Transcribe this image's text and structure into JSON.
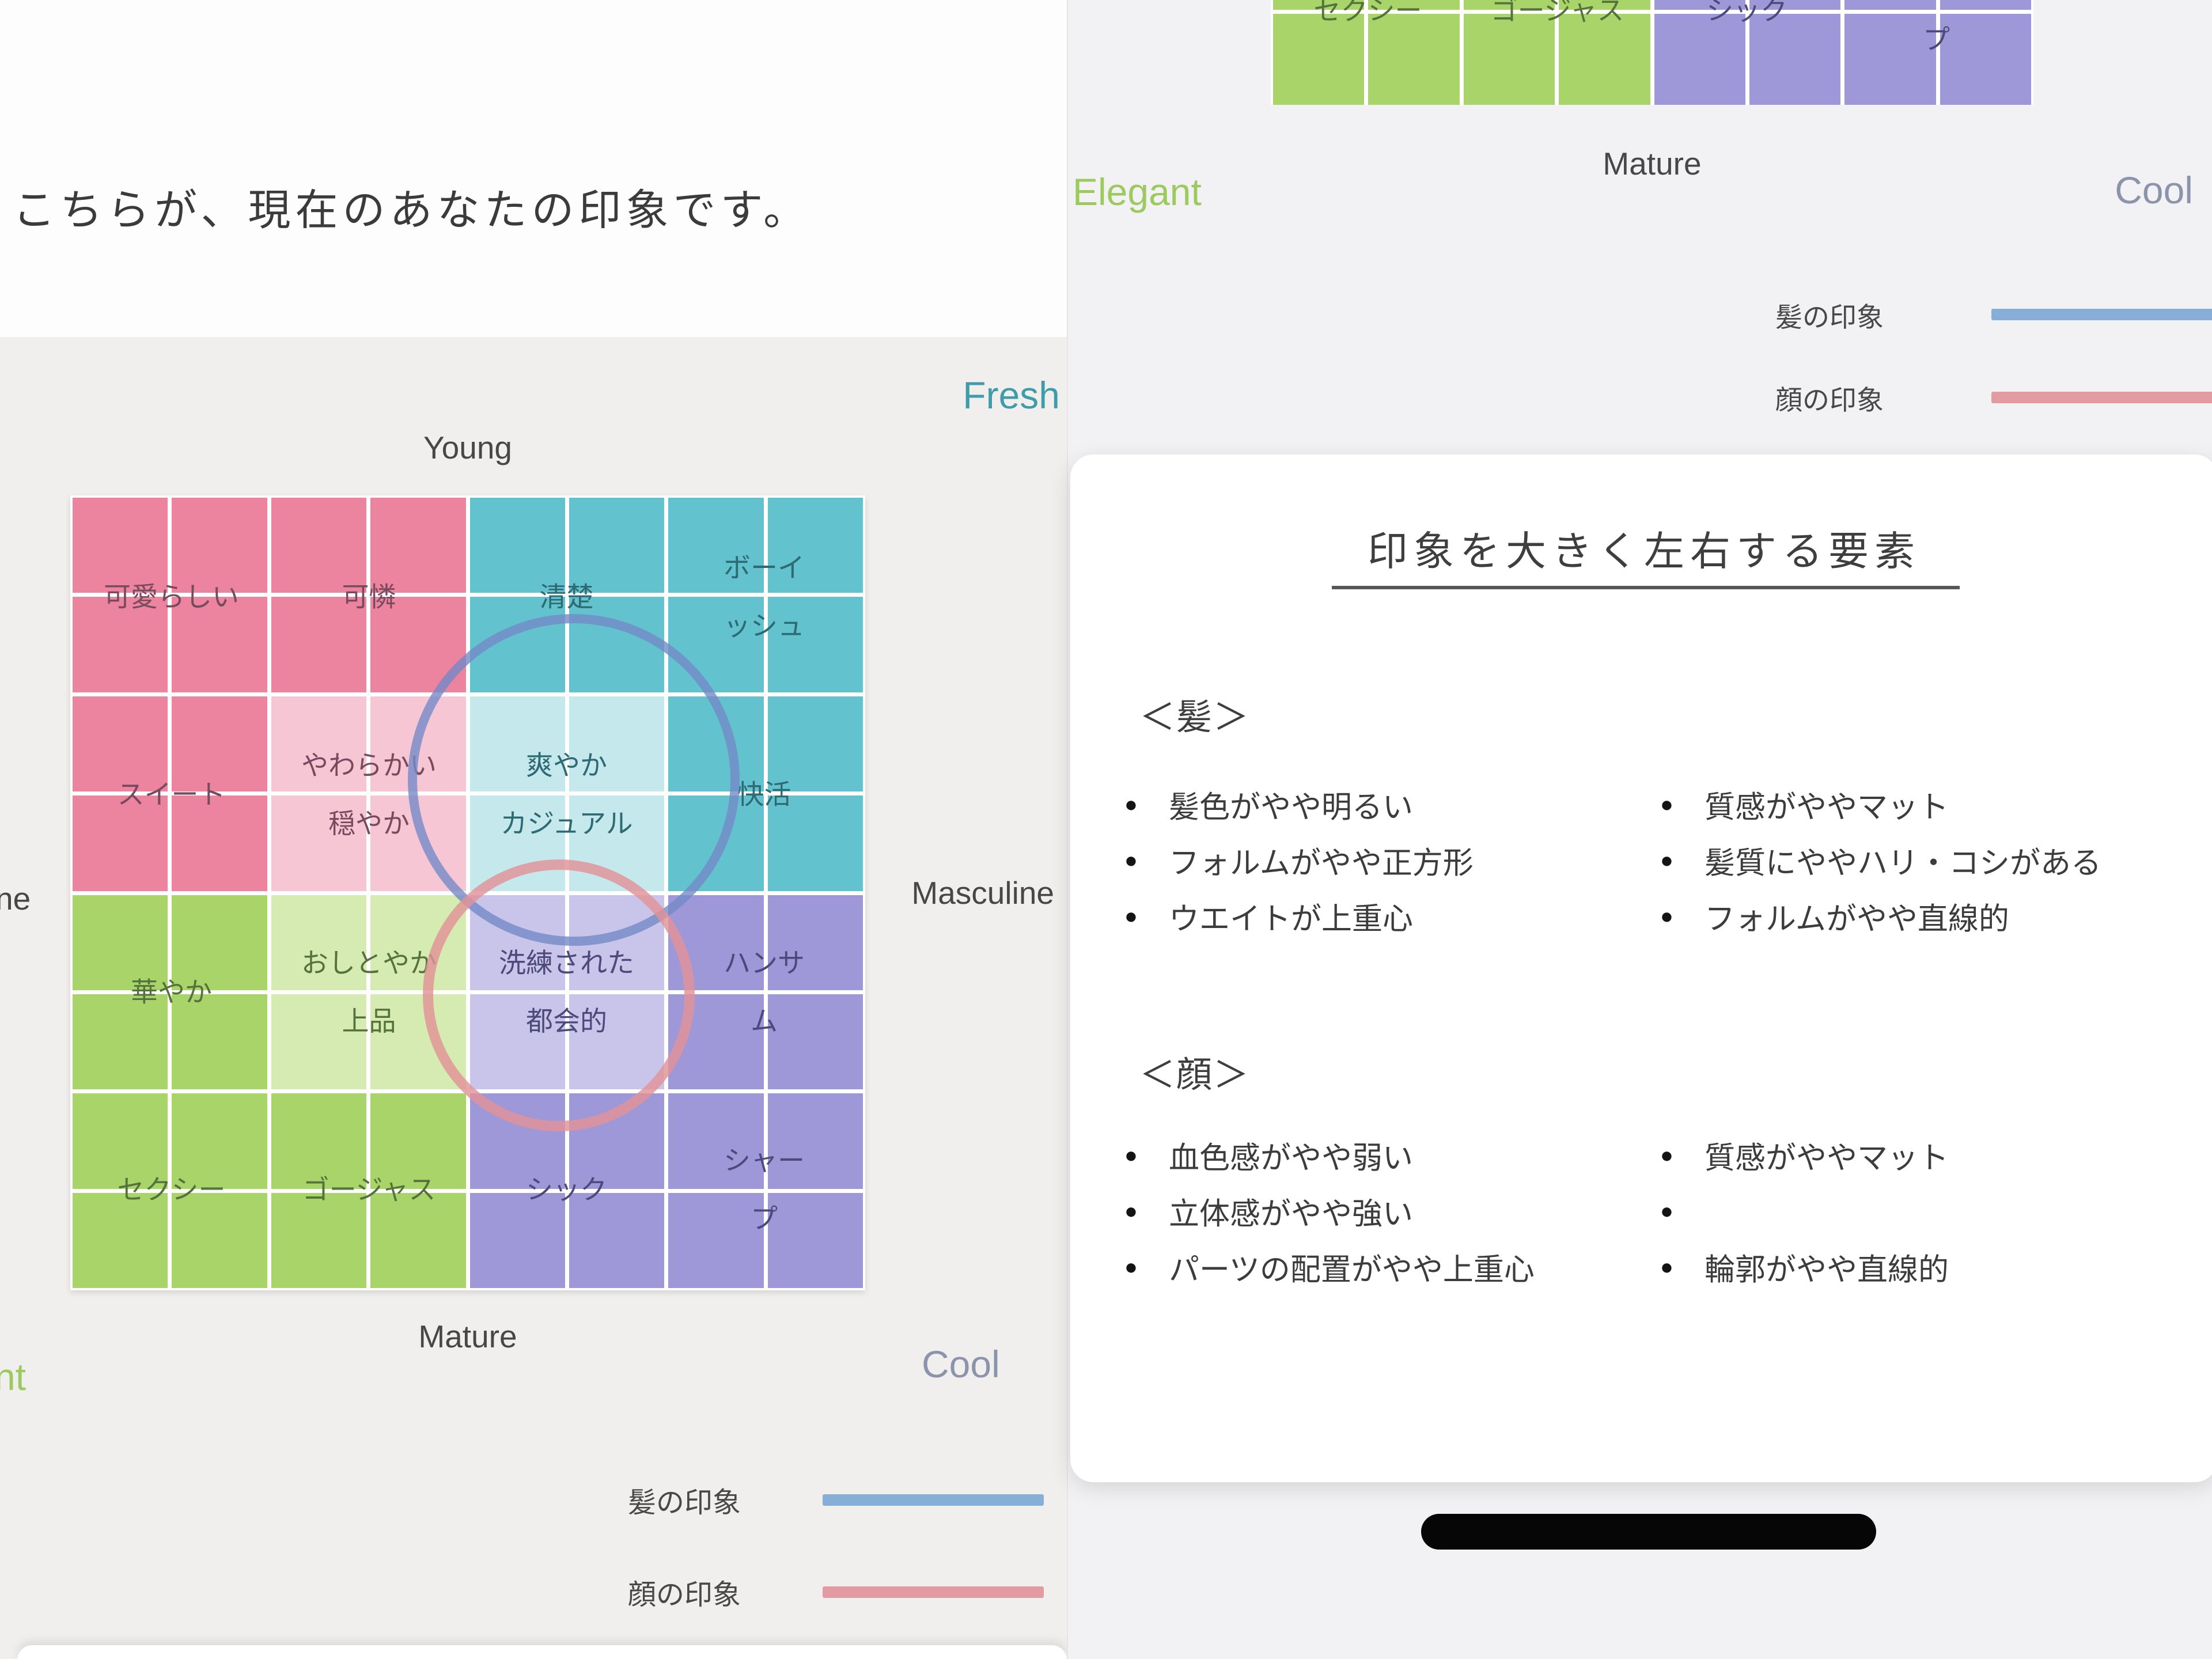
{
  "colors": {
    "quadrant": {
      "pink": "#ec84a0",
      "teal": "#62c3ce",
      "green": "#a9d469",
      "purple": "#9f98d8"
    },
    "quadrant_light": {
      "pink": "#f6c6d4",
      "teal": "#c5e8ec",
      "green": "#d6ebb2",
      "purple": "#c9c5ea"
    },
    "label_text": {
      "pink": "#774a5e",
      "teal": "#2e6a73",
      "green": "#55713c",
      "purple": "#4c4a7a"
    },
    "hair_line": "#87aed6",
    "face_line": "#e29ba1",
    "hair_circle": "#7489c7",
    "face_circle": "#e29297",
    "fresh": "#3f9da9",
    "cool": "#8b94aa",
    "elegant": "#9dca5f"
  },
  "matrix_blocks": [
    {
      "label": "可愛らしい",
      "quadrant": "pink",
      "light": false
    },
    {
      "label": "可憐",
      "quadrant": "pink",
      "light": false
    },
    {
      "label": "清楚",
      "quadrant": "teal",
      "light": false
    },
    {
      "label": "ボーイッシュ",
      "quadrant": "teal",
      "light": false
    },
    {
      "label": "スイート",
      "quadrant": "pink",
      "light": false
    },
    {
      "label": "やわらかい\n穏やか",
      "quadrant": "pink",
      "light": true
    },
    {
      "label": "爽やか\nカジュアル",
      "quadrant": "teal",
      "light": true
    },
    {
      "label": "快活",
      "quadrant": "teal",
      "light": false
    },
    {
      "label": "華やか",
      "quadrant": "green",
      "light": false
    },
    {
      "label": "おしとやか\n上品",
      "quadrant": "green",
      "light": true
    },
    {
      "label": "洗練された\n都会的",
      "quadrant": "purple",
      "light": true
    },
    {
      "label": "ハンサム",
      "quadrant": "purple",
      "light": false
    },
    {
      "label": "セクシー",
      "quadrant": "green",
      "light": false
    },
    {
      "label": "ゴージャス",
      "quadrant": "green",
      "light": false
    },
    {
      "label": "シック",
      "quadrant": "purple",
      "light": false
    },
    {
      "label": "シャープ",
      "quadrant": "purple",
      "light": false
    }
  ],
  "left_screen": {
    "heading": "こちらが、現在のあなたの印象です。",
    "axis_top": "Young",
    "axis_right": "Masculine",
    "axis_left_partial": "ne",
    "axis_bottom": "Mature",
    "corner_top_right": "Fresh",
    "corner_bottom_right": "Cool",
    "corner_bottom_left_partial": "nt",
    "legend": [
      {
        "label": "髪の印象"
      },
      {
        "label": "顔の印象"
      }
    ]
  },
  "right_screen": {
    "axis_bottom": "Mature",
    "corner_left": "Elegant",
    "corner_right": "Cool",
    "legend": [
      {
        "label": "髪の印象"
      },
      {
        "label": "顔の印象"
      }
    ],
    "card": {
      "title": "印象を大きく左右する要素",
      "sections": [
        {
          "heading": "＜髪＞",
          "left_items": [
            "髪色がやや明るい",
            "フォルムがやや正方形",
            "ウエイトが上重心"
          ],
          "right_items": [
            "質感がややマット",
            "髪質にややハリ・コシがある",
            "フォルムがやや直線的"
          ]
        },
        {
          "heading": "＜顔＞",
          "left_items": [
            "血色感がやや弱い",
            "立体感がやや強い",
            "パーツの配置がやや上重心"
          ],
          "right_items": [
            "質感がややマット",
            "",
            "輪郭がやや直線的"
          ]
        }
      ]
    }
  }
}
